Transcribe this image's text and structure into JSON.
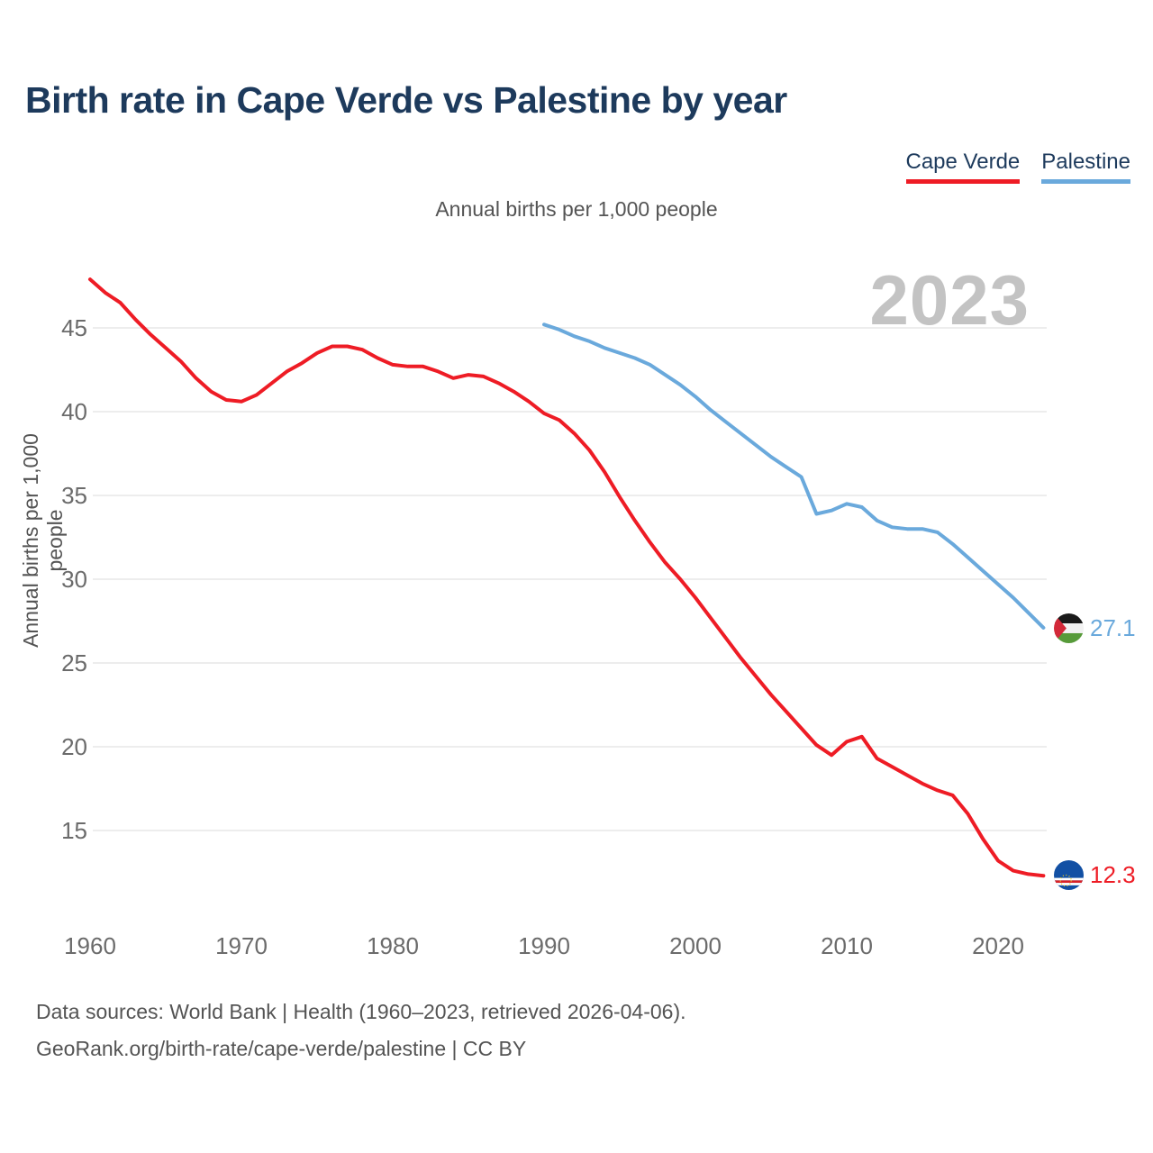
{
  "title": "Birth rate in Cape Verde vs Palestine by year",
  "subtitle": "Annual births per 1,000 people",
  "y_axis_label": "Annual births per 1,000 people",
  "watermark": "2023",
  "legend": {
    "items": [
      {
        "label": "Cape Verde",
        "color": "#ee1c25"
      },
      {
        "label": "Palestine",
        "color": "#6aa9dc"
      }
    ]
  },
  "chart_data": {
    "type": "line",
    "title": "Birth rate in Cape Verde vs Palestine by year",
    "subtitle": "Annual births per 1,000 people",
    "ylabel": "Annual births per 1,000 people",
    "xlabel": "",
    "ylim": [
      12,
      48.5
    ],
    "xlim": [
      1960,
      2023
    ],
    "yticks": [
      15,
      20,
      25,
      30,
      35,
      40,
      45
    ],
    "xticks": [
      1960,
      1970,
      1980,
      1990,
      2000,
      2010,
      2020
    ],
    "grid": "horizontal",
    "legend_position": "top-right",
    "series": [
      {
        "name": "Cape Verde",
        "color": "#ee1c25",
        "start_year": 1960,
        "end_year": 2023,
        "end_label": "12.3",
        "values": [
          47.9,
          47.1,
          46.5,
          45.5,
          44.6,
          43.8,
          43.0,
          42.0,
          41.2,
          40.7,
          40.6,
          41.0,
          41.7,
          42.4,
          42.9,
          43.5,
          43.9,
          43.9,
          43.7,
          43.2,
          42.8,
          42.7,
          42.7,
          42.4,
          42.0,
          42.2,
          42.1,
          41.7,
          41.2,
          40.6,
          39.9,
          39.5,
          38.7,
          37.7,
          36.4,
          34.9,
          33.5,
          32.2,
          31.0,
          30.0,
          28.9,
          27.7,
          26.5,
          25.3,
          24.2,
          23.1,
          22.1,
          21.1,
          20.1,
          19.5,
          20.3,
          20.6,
          19.3,
          18.8,
          18.3,
          17.8,
          17.4,
          17.1,
          16.0,
          14.5,
          13.2,
          12.6,
          12.4,
          12.3
        ]
      },
      {
        "name": "Palestine",
        "color": "#6aa9dc",
        "start_year": 1990,
        "end_year": 2023,
        "end_label": "27.1",
        "values": [
          45.2,
          44.9,
          44.5,
          44.2,
          43.8,
          43.5,
          43.2,
          42.8,
          42.2,
          41.6,
          40.9,
          40.1,
          39.4,
          38.7,
          38.0,
          37.3,
          36.7,
          36.1,
          33.9,
          34.1,
          34.5,
          34.3,
          33.5,
          33.1,
          33.0,
          33.0,
          32.8,
          32.1,
          31.3,
          30.5,
          29.7,
          28.9,
          28.0,
          27.1
        ]
      }
    ]
  },
  "end_labels": [
    {
      "series": "Palestine",
      "flag": "palestine-flag",
      "value": "27.1"
    },
    {
      "series": "Cape Verde",
      "flag": "cape-verde-flag",
      "value": "12.3"
    }
  ],
  "footer": {
    "line1": "Data sources: World Bank | Health (1960–2023, retrieved 2026-04-06).",
    "line2": "GeoRank.org/birth-rate/cape-verde/palestine | CC BY"
  }
}
